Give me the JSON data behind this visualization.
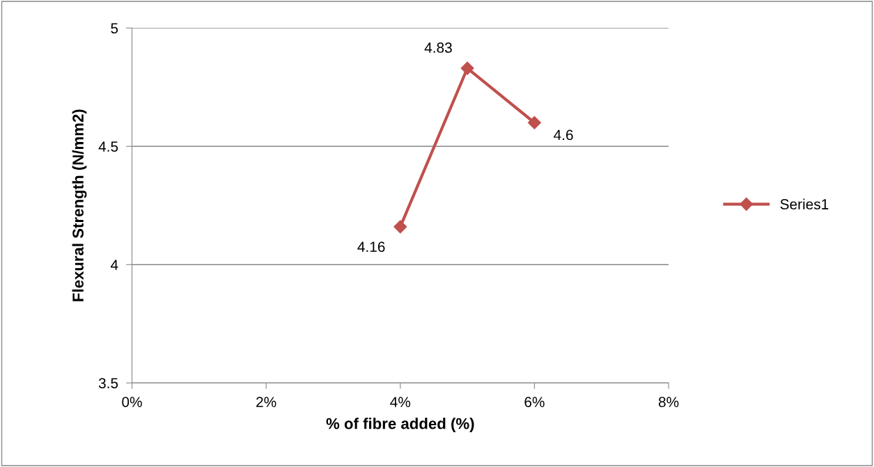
{
  "chart_data": {
    "type": "line",
    "xlabel": "% of fibre added (%)",
    "ylabel": "Flexural Strength (N/mm2)",
    "x": [
      4,
      5,
      6
    ],
    "series": [
      {
        "name": "Series1",
        "color": "#c0504d",
        "values": [
          4.16,
          4.83,
          4.6
        ]
      }
    ],
    "xlim": [
      0,
      8
    ],
    "xticks": [
      {
        "value": 0,
        "label": "0%"
      },
      {
        "value": 2,
        "label": "2%"
      },
      {
        "value": 4,
        "label": "4%"
      },
      {
        "value": 6,
        "label": "6%"
      },
      {
        "value": 8,
        "label": "8%"
      }
    ],
    "ylim": [
      3.5,
      5
    ],
    "yticks": [
      3.5,
      4,
      4.5,
      5
    ],
    "grid": "y",
    "legend": "right",
    "marker": "diamond",
    "line_style": "solid",
    "data_labels": true
  }
}
